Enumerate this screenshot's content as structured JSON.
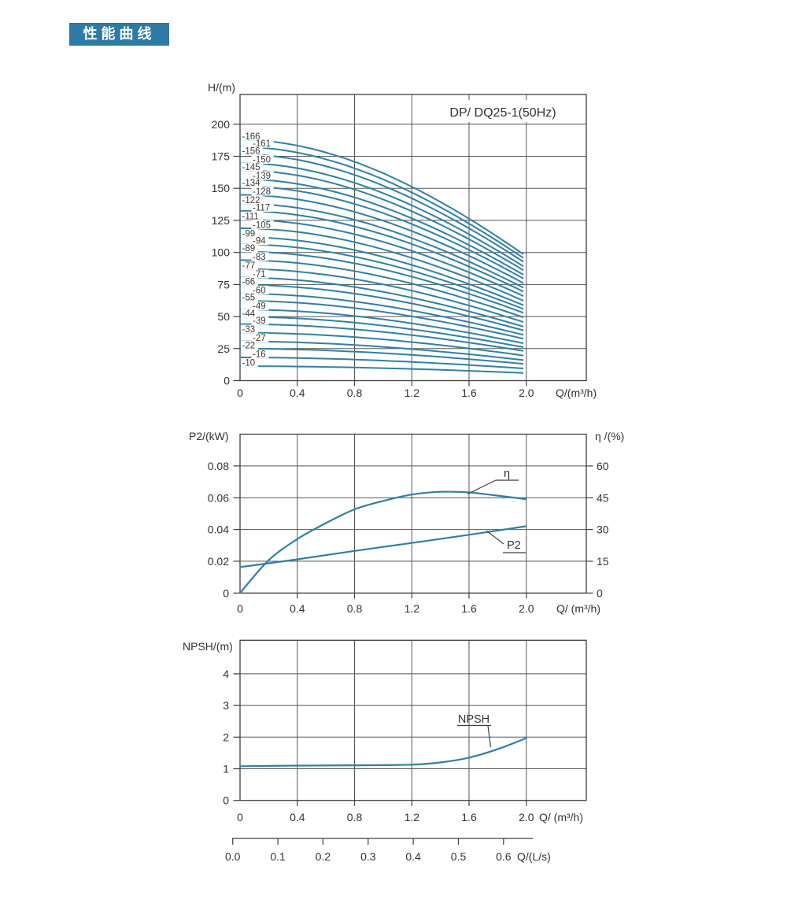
{
  "page": {
    "badge_label": "性能曲线",
    "badge_bg": "#2d7aa3",
    "curve_color": "#2f80a7",
    "grid_color": "#555555",
    "border_color": "#3f3f3f",
    "text_color": "#333333"
  },
  "chart_data": [
    {
      "id": "head-capacity",
      "type": "line",
      "title": "DP/ DQ25-1(50Hz)",
      "ylabel": "H/(m)",
      "xlabel": "Q/(m³/h)",
      "xlim": [
        0,
        2.42
      ],
      "ylim": [
        0,
        223
      ],
      "grid": true,
      "x_ticks": [
        0,
        0.4,
        0.8,
        1.2,
        1.6,
        2.0
      ],
      "x_tick_labels": [
        "0",
        "0.4",
        "0.8",
        "1.2",
        "1.6",
        "2.0"
      ],
      "y_ticks": [
        0,
        25,
        50,
        75,
        100,
        125,
        150,
        175,
        200
      ],
      "y_tick_labels": [
        "0",
        "25",
        "50",
        "75",
        "100",
        "125",
        "150",
        "175",
        "200"
      ],
      "q_data_range": [
        0,
        1.98
      ],
      "curve_shape": "H(Q) = h0 - (h0 - h2) * (1.3*(Q/2)^2 - 0.3*(Q/2)^3)",
      "curves": [
        {
          "label": "-166",
          "h0": 187.9,
          "h2": 97.1
        },
        {
          "label": "-161",
          "h0": 182.3,
          "h2": 94.2
        },
        {
          "label": "-156",
          "h0": 176.6,
          "h2": 91.3
        },
        {
          "label": "-150",
          "h0": 169.8,
          "h2": 87.8
        },
        {
          "label": "-145",
          "h0": 164.1,
          "h2": 84.8
        },
        {
          "label": "-139",
          "h0": 157.3,
          "h2": 81.3
        },
        {
          "label": "-134",
          "h0": 151.7,
          "h2": 78.4
        },
        {
          "label": "-128",
          "h0": 144.9,
          "h2": 74.9
        },
        {
          "label": "-122",
          "h0": 138.1,
          "h2": 71.4
        },
        {
          "label": "-117",
          "h0": 132.4,
          "h2": 68.4
        },
        {
          "label": "-111",
          "h0": 125.7,
          "h2": 64.9
        },
        {
          "label": "-105",
          "h0": 118.9,
          "h2": 61.4
        },
        {
          "label": "-99",
          "h0": 112.1,
          "h2": 57.9
        },
        {
          "label": "-94",
          "h0": 106.4,
          "h2": 55.0
        },
        {
          "label": "-89",
          "h0": 100.7,
          "h2": 52.1
        },
        {
          "label": "-83",
          "h0": 94.0,
          "h2": 48.6
        },
        {
          "label": "-77",
          "h0": 87.2,
          "h2": 45.0
        },
        {
          "label": "-71",
          "h0": 80.4,
          "h2": 41.5
        },
        {
          "label": "-66",
          "h0": 74.7,
          "h2": 38.6
        },
        {
          "label": "-60",
          "h0": 67.9,
          "h2": 35.1
        },
        {
          "label": "-55",
          "h0": 62.3,
          "h2": 32.2
        },
        {
          "label": "-49",
          "h0": 55.5,
          "h2": 28.7
        },
        {
          "label": "-44",
          "h0": 49.8,
          "h2": 25.7
        },
        {
          "label": "-39",
          "h0": 44.1,
          "h2": 22.8
        },
        {
          "label": "-33",
          "h0": 37.4,
          "h2": 19.3
        },
        {
          "label": "-27",
          "h0": 30.6,
          "h2": 15.8
        },
        {
          "label": "-22",
          "h0": 24.9,
          "h2": 12.9
        },
        {
          "label": "-16",
          "h0": 18.1,
          "h2": 9.4
        },
        {
          "label": "-10",
          "h0": 11.3,
          "h2": 5.9
        }
      ]
    },
    {
      "id": "power-efficiency",
      "type": "line",
      "ylabel_left": "P2/(kW)",
      "ylabel_right": "η /(%)",
      "xlabel": "Q/ (m³/h)",
      "x_ticks": [
        0,
        0.4,
        0.8,
        1.2,
        1.6,
        2.0
      ],
      "x_tick_labels": [
        "0",
        "0.4",
        "0.8",
        "1.2",
        "1.6",
        "2.0"
      ],
      "y_ticks_left": [
        0,
        0.02,
        0.04,
        0.06,
        0.08
      ],
      "y_tick_labels_left": [
        "0",
        "0.02",
        "0.04",
        "0.06",
        "0.08"
      ],
      "y_ticks_right": [
        0,
        15,
        30,
        45,
        60
      ],
      "y_tick_labels_right": [
        "0",
        "15",
        "30",
        "45",
        "60"
      ],
      "ylim_left": [
        0,
        0.1
      ],
      "ylim_right": [
        0,
        75
      ],
      "series": [
        {
          "name": "η",
          "axis": "right",
          "x": [
            0,
            0.2,
            0.4,
            0.6,
            0.8,
            1.0,
            1.2,
            1.4,
            1.6,
            1.8,
            2.0
          ],
          "y": [
            0,
            15.5,
            25.5,
            33.0,
            39.5,
            43.5,
            46.5,
            47.8,
            47.5,
            46.0,
            44.3
          ]
        },
        {
          "name": "P2",
          "axis": "left",
          "x": [
            0,
            0.4,
            0.8,
            1.2,
            1.6,
            2.0
          ],
          "y": [
            0.0163,
            0.0212,
            0.0265,
            0.0315,
            0.0367,
            0.0421
          ]
        }
      ]
    },
    {
      "id": "npsh",
      "type": "line",
      "ylabel": "NPSH/(m)",
      "xlabel": "Q/ (m³/h)",
      "xlabel2": "Q/(L/s)",
      "x_ticks": [
        0,
        0.4,
        0.8,
        1.2,
        1.6,
        2.0
      ],
      "x_tick_labels": [
        "0",
        "0.4",
        "0.8",
        "1.2",
        "1.6",
        "2.0"
      ],
      "x2_tick_labels": [
        "0.0",
        "0.1",
        "0.2",
        "0.3",
        "0.4",
        "0.5",
        "0.6"
      ],
      "y_ticks": [
        0,
        1,
        2,
        3,
        4
      ],
      "y_tick_labels": [
        "0",
        "1",
        "2",
        "3",
        "4"
      ],
      "ylim": [
        0,
        5.05
      ],
      "series": [
        {
          "name": "NPSH",
          "x": [
            0,
            0.4,
            0.8,
            1.2,
            1.4,
            1.6,
            1.8,
            2.0
          ],
          "y": [
            1.08,
            1.1,
            1.11,
            1.13,
            1.2,
            1.35,
            1.62,
            1.97
          ]
        }
      ]
    }
  ]
}
